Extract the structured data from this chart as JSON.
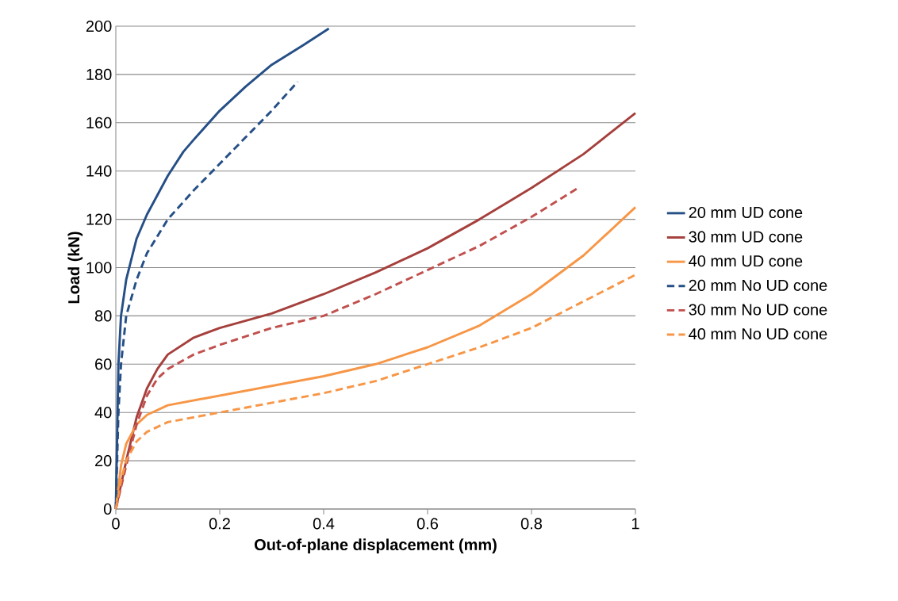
{
  "chart_data": {
    "type": "line",
    "xlabel": "Out-of-plane displacement (mm)",
    "ylabel": "Load (kN)",
    "xlim": [
      0,
      1
    ],
    "ylim": [
      0,
      200
    ],
    "xticks": [
      0,
      0.2,
      0.4,
      0.6,
      0.8,
      1
    ],
    "yticks": [
      0,
      20,
      40,
      60,
      80,
      100,
      120,
      140,
      160,
      180,
      200
    ],
    "grid": "y",
    "legend": "right",
    "marker": "none",
    "series": [
      {
        "name": "20 mm UD cone",
        "color": "#254f86",
        "line_style": "solid",
        "x": [
          0,
          0.005,
          0.01,
          0.02,
          0.04,
          0.06,
          0.1,
          0.13,
          0.15,
          0.2,
          0.25,
          0.3,
          0.33,
          0.36,
          0.41
        ],
        "values": [
          0,
          60,
          80,
          95,
          112,
          122,
          138,
          148,
          153,
          165,
          175,
          184,
          188,
          192,
          199
        ]
      },
      {
        "name": "30 mm UD cone",
        "color": "#a5403d",
        "line_style": "solid",
        "x": [
          0,
          0.02,
          0.04,
          0.06,
          0.08,
          0.1,
          0.15,
          0.2,
          0.3,
          0.4,
          0.5,
          0.6,
          0.7,
          0.8,
          0.9,
          1
        ],
        "values": [
          0,
          20,
          38,
          50,
          58,
          64,
          71,
          75,
          81,
          89,
          98,
          108,
          120,
          133,
          147,
          164
        ]
      },
      {
        "name": "40 mm UD cone",
        "color": "#f79646",
        "line_style": "solid",
        "x": [
          0,
          0.01,
          0.02,
          0.04,
          0.06,
          0.1,
          0.2,
          0.3,
          0.4,
          0.5,
          0.6,
          0.7,
          0.8,
          0.9,
          1
        ],
        "values": [
          0,
          18,
          27,
          35,
          39,
          43,
          47,
          51,
          55,
          60,
          67,
          76,
          89,
          105,
          125
        ]
      },
      {
        "name": "20 mm No UD cone",
        "color": "#254f86",
        "line_style": "dashed",
        "x": [
          0,
          0.005,
          0.01,
          0.02,
          0.04,
          0.06,
          0.1,
          0.15,
          0.2,
          0.25,
          0.3,
          0.35
        ],
        "values": [
          0,
          40,
          60,
          80,
          95,
          106,
          120,
          132,
          143,
          154,
          165,
          177
        ]
      },
      {
        "name": "30 mm No UD cone",
        "color": "#c0504d",
        "line_style": "dashed",
        "x": [
          0,
          0.02,
          0.04,
          0.06,
          0.08,
          0.1,
          0.15,
          0.2,
          0.3,
          0.4,
          0.5,
          0.6,
          0.7,
          0.8,
          0.89
        ],
        "values": [
          0,
          18,
          35,
          47,
          54,
          58,
          64,
          68,
          75,
          80,
          89,
          99,
          109,
          121,
          133
        ]
      },
      {
        "name": "40 mm No UD cone",
        "color": "#f79646",
        "line_style": "dashed",
        "x": [
          0,
          0.01,
          0.02,
          0.04,
          0.06,
          0.1,
          0.2,
          0.3,
          0.4,
          0.5,
          0.6,
          0.7,
          0.8,
          0.9,
          1
        ],
        "values": [
          0,
          12,
          20,
          28,
          32,
          36,
          40,
          44,
          48,
          53,
          60,
          67,
          75,
          86,
          97
        ]
      }
    ]
  }
}
